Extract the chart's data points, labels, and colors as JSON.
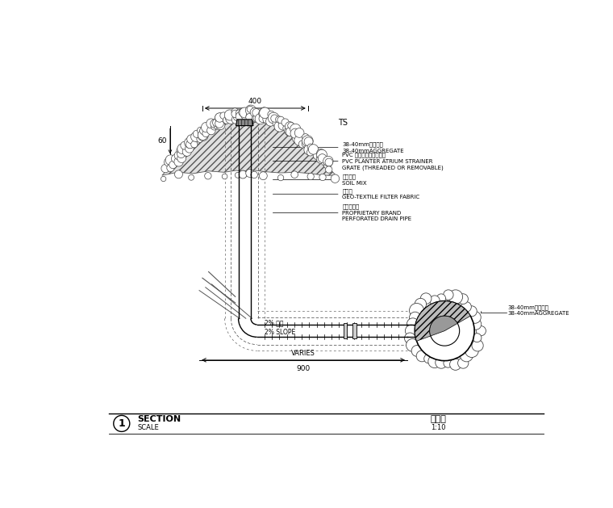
{
  "title": "SECTION",
  "title_cn": "剪面图",
  "scale_label": "SCALE",
  "scale_value": "1:10",
  "section_num": "1",
  "dim_top": "400",
  "dim_ts": "TS",
  "dim_60": "60",
  "dim_bottom": "900",
  "dim_varies": "VARIES",
  "slope_label": "2% 坡度\n2% SLOPE",
  "bg_color": "#ffffff",
  "line_color": "#000000"
}
